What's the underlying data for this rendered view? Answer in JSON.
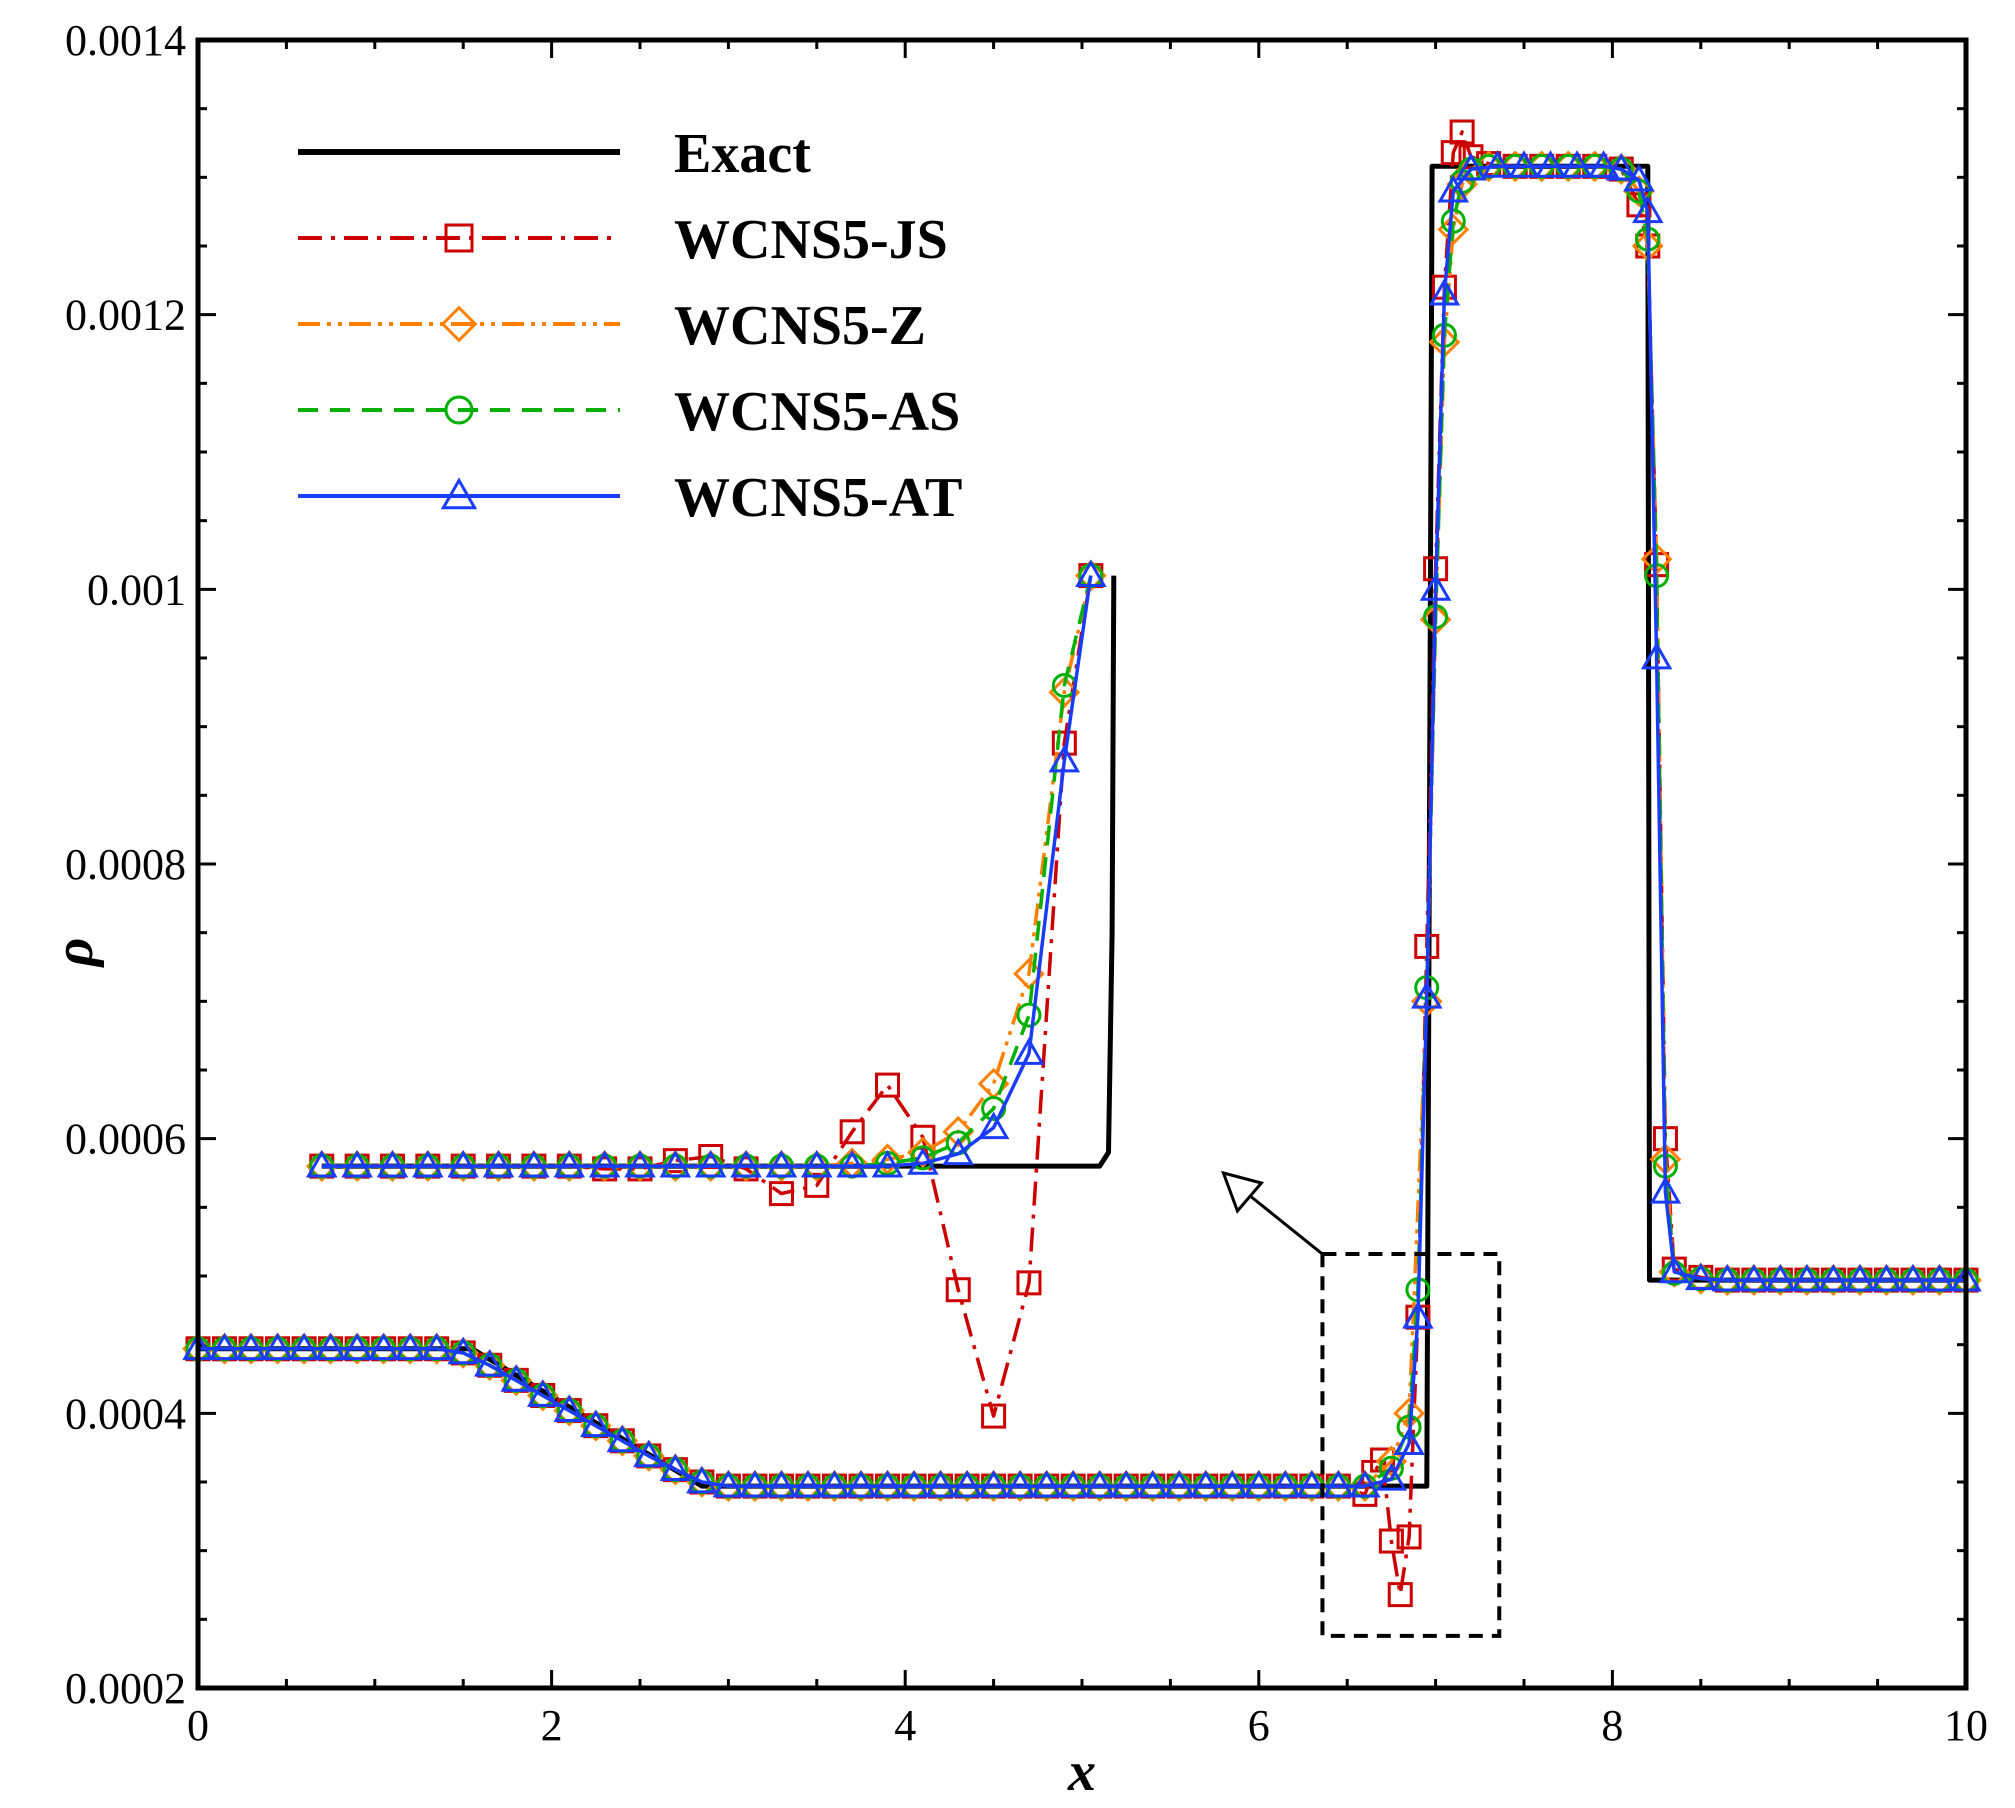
{
  "chart_data": {
    "type": "line",
    "title": "",
    "xlabel": "x",
    "ylabel": "ρ",
    "xlim": [
      0,
      10
    ],
    "ylim": [
      0.0002,
      0.0014
    ],
    "x_ticks": [
      0,
      2,
      4,
      6,
      8,
      10
    ],
    "x_tick_labels": [
      "0",
      "2",
      "4",
      "6",
      "8",
      "10"
    ],
    "y_ticks": [
      0.0002,
      0.0004,
      0.0006,
      0.0008,
      0.001,
      0.0012,
      0.0014
    ],
    "y_tick_labels": [
      "0.0002",
      "0.0004",
      "0.0006",
      "0.0008",
      "0.001",
      "0.0012",
      "0.0014"
    ],
    "legend_position": "top-left",
    "grid": false,
    "series": [
      {
        "name": "Exact",
        "color": "#000000",
        "dash": "solid",
        "marker": "none",
        "main": {
          "x": [
            0,
            1.55,
            2.85,
            6.95,
            6.96,
            6.98,
            8.2,
            8.21,
            10
          ],
          "y": [
            0.000447,
            0.000447,
            0.000347,
            0.000347,
            0.00065,
            0.001308,
            0.001308,
            0.000497,
            0.000497
          ]
        },
        "inset": {
          "x": [
            0.7,
            5.1,
            5.15,
            5.17,
            5.18
          ],
          "y": [
            0.00058,
            0.00058,
            0.00059,
            0.00075,
            0.00101
          ]
        }
      },
      {
        "name": "WCNS5-JS",
        "color": "#cc0000",
        "dash": "dashdot",
        "marker": "square",
        "main": {
          "x": [
            0,
            0.15,
            0.3,
            0.45,
            0.6,
            0.75,
            0.9,
            1.05,
            1.2,
            1.35,
            1.5,
            1.65,
            1.8,
            1.95,
            2.1,
            2.25,
            2.4,
            2.55,
            2.7,
            2.85,
            3.0,
            3.15,
            3.3,
            3.45,
            3.6,
            3.75,
            3.9,
            4.05,
            4.2,
            4.35,
            4.5,
            4.65,
            4.8,
            4.95,
            5.1,
            5.25,
            5.4,
            5.55,
            5.7,
            5.85,
            6.0,
            6.15,
            6.3,
            6.45,
            6.6,
            6.65,
            6.7,
            6.75,
            6.8,
            6.85,
            6.9,
            6.95,
            7.0,
            7.05,
            7.1,
            7.15,
            7.2,
            7.3,
            7.45,
            7.6,
            7.75,
            7.9,
            8.05,
            8.15,
            8.2,
            8.25,
            8.3,
            8.35,
            8.5,
            8.65,
            8.8,
            8.95,
            9.1,
            9.25,
            9.4,
            9.55,
            9.7,
            9.85,
            10.0
          ],
          "y": [
            0.000447,
            0.000447,
            0.000447,
            0.000447,
            0.000447,
            0.000447,
            0.000447,
            0.000447,
            0.000447,
            0.000447,
            0.000444,
            0.000435,
            0.000424,
            0.000413,
            0.000402,
            0.000391,
            0.00038,
            0.000369,
            0.000359,
            0.00035,
            0.000347,
            0.000347,
            0.000347,
            0.000347,
            0.000347,
            0.000347,
            0.000347,
            0.000347,
            0.000347,
            0.000347,
            0.000347,
            0.000347,
            0.000347,
            0.000347,
            0.000347,
            0.000347,
            0.000347,
            0.000347,
            0.000347,
            0.000347,
            0.000347,
            0.000347,
            0.000347,
            0.000347,
            0.000341,
            0.000357,
            0.000366,
            0.000307,
            0.000268,
            0.00031,
            0.00047,
            0.00074,
            0.001015,
            0.00122,
            0.001318,
            0.001333,
            0.001315,
            0.00131,
            0.001308,
            0.001308,
            0.001308,
            0.001308,
            0.001306,
            0.00128,
            0.00125,
            0.001018,
            0.0006,
            0.000505,
            0.000499,
            0.000497,
            0.000497,
            0.000497,
            0.000497,
            0.000497,
            0.000497,
            0.000497,
            0.000497,
            0.000497,
            0.000497
          ]
        },
        "inset": {
          "x": [
            0.7,
            0.9,
            1.1,
            1.3,
            1.5,
            1.7,
            1.9,
            2.1,
            2.3,
            2.5,
            2.7,
            2.9,
            3.1,
            3.3,
            3.5,
            3.7,
            3.9,
            4.1,
            4.3,
            4.5,
            4.7,
            4.9,
            5.05
          ],
          "y": [
            0.00058,
            0.00058,
            0.00058,
            0.00058,
            0.00058,
            0.00058,
            0.00058,
            0.00058,
            0.000578,
            0.000578,
            0.000584,
            0.000587,
            0.000578,
            0.00056,
            0.000566,
            0.000605,
            0.000639,
            0.000601,
            0.00049,
            0.000398,
            0.000495,
            0.000888,
            0.00101
          ]
        }
      },
      {
        "name": "WCNS5-Z",
        "color": "#ff8000",
        "dash": "dashdotdot",
        "marker": "diamond",
        "main": {
          "x": [
            0,
            0.15,
            0.3,
            0.45,
            0.6,
            0.75,
            0.9,
            1.05,
            1.2,
            1.35,
            1.5,
            1.65,
            1.8,
            1.95,
            2.1,
            2.25,
            2.4,
            2.55,
            2.7,
            2.85,
            3.0,
            3.15,
            3.3,
            3.45,
            3.6,
            3.75,
            3.9,
            4.05,
            4.2,
            4.35,
            4.5,
            4.65,
            4.8,
            4.95,
            5.1,
            5.25,
            5.4,
            5.55,
            5.7,
            5.85,
            6.0,
            6.15,
            6.3,
            6.45,
            6.6,
            6.75,
            6.85,
            6.95,
            7.0,
            7.05,
            7.1,
            7.15,
            7.2,
            7.3,
            7.45,
            7.6,
            7.75,
            7.9,
            8.05,
            8.15,
            8.2,
            8.25,
            8.3,
            8.35,
            8.5,
            8.65,
            8.8,
            8.95,
            9.1,
            9.25,
            9.4,
            9.55,
            9.7,
            9.85,
            10.0
          ],
          "y": [
            0.000447,
            0.000447,
            0.000447,
            0.000447,
            0.000447,
            0.000447,
            0.000447,
            0.000447,
            0.000447,
            0.000447,
            0.000444,
            0.000435,
            0.000424,
            0.000413,
            0.000402,
            0.000391,
            0.00038,
            0.000369,
            0.000359,
            0.00035,
            0.000347,
            0.000347,
            0.000347,
            0.000347,
            0.000347,
            0.000347,
            0.000347,
            0.000347,
            0.000347,
            0.000347,
            0.000347,
            0.000347,
            0.000347,
            0.000347,
            0.000347,
            0.000347,
            0.000347,
            0.000347,
            0.000347,
            0.000347,
            0.000347,
            0.000347,
            0.000347,
            0.000347,
            0.000347,
            0.000365,
            0.0004,
            0.0007,
            0.000978,
            0.00118,
            0.001262,
            0.001295,
            0.001305,
            0.001308,
            0.001308,
            0.001308,
            0.001308,
            0.001308,
            0.001306,
            0.00129,
            0.00125,
            0.001022,
            0.000585,
            0.000503,
            0.000498,
            0.000497,
            0.000497,
            0.000497,
            0.000497,
            0.000497,
            0.000497,
            0.000497,
            0.000497,
            0.000497,
            0.000497
          ]
        },
        "inset": {
          "x": [
            0.7,
            0.9,
            1.1,
            1.3,
            1.5,
            1.7,
            1.9,
            2.1,
            2.3,
            2.5,
            2.7,
            2.9,
            3.1,
            3.3,
            3.5,
            3.7,
            3.9,
            4.1,
            4.3,
            4.5,
            4.7,
            4.9,
            5.05
          ],
          "y": [
            0.00058,
            0.00058,
            0.00058,
            0.00058,
            0.00058,
            0.00058,
            0.00058,
            0.00058,
            0.00058,
            0.00058,
            0.00058,
            0.00058,
            0.00058,
            0.00058,
            0.00058,
            0.000582,
            0.000585,
            0.00059,
            0.000605,
            0.00064,
            0.00072,
            0.000925,
            0.00101
          ]
        }
      },
      {
        "name": "WCNS5-AS",
        "color": "#00b000",
        "dash": "dashed",
        "marker": "circle",
        "main": {
          "x": [
            0,
            0.15,
            0.3,
            0.45,
            0.6,
            0.75,
            0.9,
            1.05,
            1.2,
            1.35,
            1.5,
            1.65,
            1.8,
            1.95,
            2.1,
            2.25,
            2.4,
            2.55,
            2.7,
            2.85,
            3.0,
            3.15,
            3.3,
            3.45,
            3.6,
            3.75,
            3.9,
            4.05,
            4.2,
            4.35,
            4.5,
            4.65,
            4.8,
            4.95,
            5.1,
            5.25,
            5.4,
            5.55,
            5.7,
            5.85,
            6.0,
            6.15,
            6.3,
            6.45,
            6.6,
            6.75,
            6.85,
            6.9,
            6.95,
            7.0,
            7.05,
            7.1,
            7.15,
            7.2,
            7.3,
            7.45,
            7.6,
            7.75,
            7.9,
            8.05,
            8.15,
            8.2,
            8.25,
            8.3,
            8.35,
            8.5,
            8.65,
            8.8,
            8.95,
            9.1,
            9.25,
            9.4,
            9.55,
            9.7,
            9.85,
            10.0
          ],
          "y": [
            0.000447,
            0.000447,
            0.000447,
            0.000447,
            0.000447,
            0.000447,
            0.000447,
            0.000447,
            0.000447,
            0.000447,
            0.000444,
            0.000435,
            0.000424,
            0.000413,
            0.000402,
            0.000391,
            0.00038,
            0.000369,
            0.000359,
            0.00035,
            0.000347,
            0.000347,
            0.000347,
            0.000347,
            0.000347,
            0.000347,
            0.000347,
            0.000347,
            0.000347,
            0.000347,
            0.000347,
            0.000347,
            0.000347,
            0.000347,
            0.000347,
            0.000347,
            0.000347,
            0.000347,
            0.000347,
            0.000347,
            0.000347,
            0.000347,
            0.000347,
            0.000347,
            0.000347,
            0.00036,
            0.00039,
            0.00049,
            0.00071,
            0.00098,
            0.001185,
            0.001268,
            0.001297,
            0.001306,
            0.001308,
            0.001308,
            0.001308,
            0.001308,
            0.001308,
            0.001306,
            0.00129,
            0.001255,
            0.00101,
            0.00058,
            0.000502,
            0.000498,
            0.000497,
            0.000497,
            0.000497,
            0.000497,
            0.000497,
            0.000497,
            0.000497,
            0.000497,
            0.000497,
            0.000497
          ]
        },
        "inset": {
          "x": [
            0.7,
            0.9,
            1.1,
            1.3,
            1.5,
            1.7,
            1.9,
            2.1,
            2.3,
            2.5,
            2.7,
            2.9,
            3.1,
            3.3,
            3.5,
            3.7,
            3.9,
            4.1,
            4.3,
            4.5,
            4.7,
            4.9,
            5.05
          ],
          "y": [
            0.00058,
            0.00058,
            0.00058,
            0.00058,
            0.00058,
            0.00058,
            0.00058,
            0.00058,
            0.00058,
            0.00058,
            0.00058,
            0.00058,
            0.00058,
            0.00058,
            0.00058,
            0.00058,
            0.000582,
            0.000586,
            0.000597,
            0.000622,
            0.00069,
            0.00093,
            0.00101
          ]
        }
      },
      {
        "name": "WCNS5-AT",
        "color": "#1a3cff",
        "dash": "solid",
        "marker": "triangle",
        "main": {
          "x": [
            0,
            0.15,
            0.3,
            0.45,
            0.6,
            0.75,
            0.9,
            1.05,
            1.2,
            1.35,
            1.5,
            1.65,
            1.8,
            1.95,
            2.1,
            2.25,
            2.4,
            2.55,
            2.7,
            2.85,
            3.0,
            3.15,
            3.3,
            3.45,
            3.6,
            3.75,
            3.9,
            4.05,
            4.2,
            4.35,
            4.5,
            4.65,
            4.8,
            4.95,
            5.1,
            5.25,
            5.4,
            5.55,
            5.7,
            5.85,
            6.0,
            6.15,
            6.3,
            6.45,
            6.6,
            6.75,
            6.85,
            6.9,
            6.95,
            7.0,
            7.05,
            7.1,
            7.2,
            7.35,
            7.5,
            7.65,
            7.8,
            7.95,
            8.05,
            8.15,
            8.2,
            8.25,
            8.3,
            8.35,
            8.5,
            8.65,
            8.8,
            8.95,
            9.1,
            9.25,
            9.4,
            9.55,
            9.7,
            9.85,
            10.0
          ],
          "y": [
            0.000447,
            0.000447,
            0.000447,
            0.000447,
            0.000447,
            0.000447,
            0.000447,
            0.000447,
            0.000447,
            0.000447,
            0.000444,
            0.000435,
            0.000424,
            0.000413,
            0.000402,
            0.000391,
            0.00038,
            0.000369,
            0.000359,
            0.00035,
            0.000347,
            0.000347,
            0.000347,
            0.000347,
            0.000347,
            0.000347,
            0.000347,
            0.000347,
            0.000347,
            0.000347,
            0.000347,
            0.000347,
            0.000347,
            0.000347,
            0.000347,
            0.000347,
            0.000347,
            0.000347,
            0.000347,
            0.000347,
            0.000347,
            0.000347,
            0.000347,
            0.000347,
            0.000347,
            0.000352,
            0.000378,
            0.00047,
            0.000703,
            0.001,
            0.001215,
            0.00129,
            0.001306,
            0.001308,
            0.001308,
            0.001308,
            0.001308,
            0.001308,
            0.001306,
            0.001298,
            0.001275,
            0.00095,
            0.000561,
            0.000503,
            0.000498,
            0.000497,
            0.000497,
            0.000497,
            0.000497,
            0.000497,
            0.000497,
            0.000497,
            0.000497,
            0.000497,
            0.000497
          ]
        },
        "inset": {
          "x": [
            0.7,
            0.9,
            1.1,
            1.3,
            1.5,
            1.7,
            1.9,
            2.1,
            2.3,
            2.5,
            2.7,
            2.9,
            3.1,
            3.3,
            3.5,
            3.7,
            3.9,
            4.1,
            4.3,
            4.5,
            4.7,
            4.9,
            5.05
          ],
          "y": [
            0.00058,
            0.00058,
            0.00058,
            0.00058,
            0.00058,
            0.00058,
            0.00058,
            0.00058,
            0.00058,
            0.00058,
            0.00058,
            0.00058,
            0.00058,
            0.00058,
            0.00058,
            0.00058,
            0.00058,
            0.000582,
            0.000589,
            0.000608,
            0.000662,
            0.000875,
            0.00101
          ]
        }
      }
    ],
    "zoom_box": {
      "main_range": {
        "x": [
          6.36,
          7.36
        ],
        "y": [
          0.000238,
          0.000516
        ]
      },
      "inset_range": {
        "x": [
          0.7,
          5.2
        ],
        "y": [
          0.00058,
          0.00101
        ]
      }
    }
  }
}
